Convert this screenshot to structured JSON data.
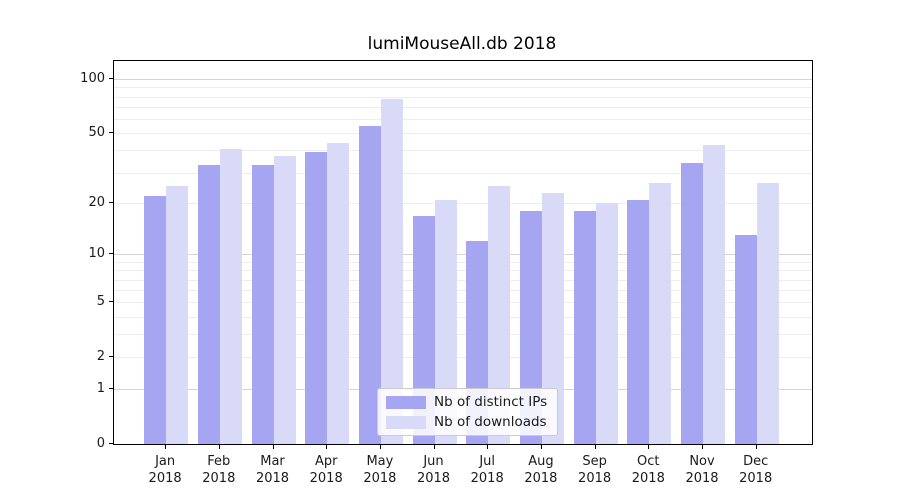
{
  "chart_data": {
    "type": "bar",
    "title": "lumiMouseAll.db 2018",
    "categories": [
      "Jan",
      "Feb",
      "Mar",
      "Apr",
      "May",
      "Jun",
      "Jul",
      "Aug",
      "Sep",
      "Oct",
      "Nov",
      "Dec"
    ],
    "year_label": "2018",
    "series": [
      {
        "name": "Nb of distinct IPs",
        "color": "#a5a5f2",
        "values": [
          22,
          33,
          33,
          39,
          55,
          17,
          12,
          18,
          18,
          21,
          34,
          13
        ]
      },
      {
        "name": "Nb of downloads",
        "color": "#d9d9f8",
        "values": [
          25,
          41,
          37,
          44,
          78,
          21,
          25,
          23,
          20,
          26,
          43,
          26
        ]
      }
    ],
    "xlabel": "",
    "ylabel": "",
    "yscale": "log1p",
    "ylim": [
      0,
      126
    ],
    "yticks": [
      0,
      1,
      2,
      5,
      10,
      20,
      50,
      100
    ],
    "major_gridline_values": [
      1,
      10,
      100
    ],
    "minor_gridline_values": [
      2,
      3,
      4,
      5,
      6,
      7,
      8,
      9,
      20,
      30,
      40,
      50,
      60,
      70,
      80,
      90
    ],
    "grid": "on",
    "legend_position": "lower-center",
    "colors": {
      "series1": "#a5a5f2",
      "series2": "#d9d9f8",
      "major_grid": "#d4d4d4",
      "minor_grid": "#ededed",
      "spine": "#000000",
      "text": "#1a1a1a"
    }
  }
}
